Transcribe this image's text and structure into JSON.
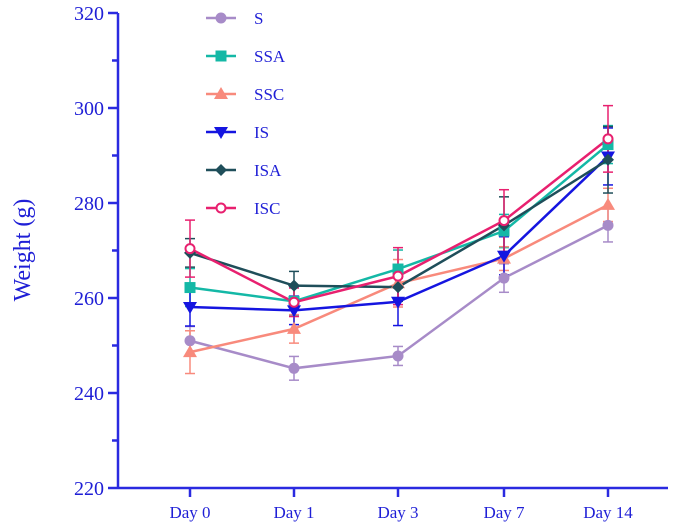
{
  "chart_data": {
    "type": "line",
    "title": "",
    "xlabel": "",
    "ylabel": "Weight (g)",
    "ylim": [
      220,
      320
    ],
    "yticks": [
      220,
      240,
      260,
      280,
      300,
      320
    ],
    "ytick_labels": [
      "220",
      "240",
      "260",
      "280",
      "300",
      "320"
    ],
    "categories": [
      "Day 0",
      "Day 1",
      "Day 3",
      "Day 7",
      "Day 14"
    ],
    "legend_position": "top-center",
    "series": [
      {
        "name": "S",
        "color": "#a78bc8",
        "marker": "circle",
        "values": [
          251,
          245.2,
          247.8,
          264.2,
          275.3
        ],
        "errors": [
          3,
          2.5,
          2,
          3,
          3.5
        ]
      },
      {
        "name": "SSA",
        "color": "#14b8a6",
        "marker": "square",
        "values": [
          262.2,
          259.3,
          266.1,
          274.1,
          292.3
        ],
        "errors": [
          4,
          3,
          4,
          3.5,
          4
        ]
      },
      {
        "name": "SSC",
        "color": "#f88a7c",
        "marker": "triangle-up",
        "values": [
          248.6,
          253.5,
          263.1,
          268.3,
          279.6
        ],
        "errors": [
          4.5,
          3,
          5,
          2.5,
          3.5
        ]
      },
      {
        "name": "IS",
        "color": "#1515e0",
        "marker": "triangle-down",
        "values": [
          258.1,
          257.4,
          259.2,
          268.9,
          289.8
        ],
        "errors": [
          4,
          3,
          5,
          4,
          6
        ]
      },
      {
        "name": "ISA",
        "color": "#1f4e5a",
        "marker": "diamond",
        "values": [
          269.5,
          262.6,
          262.3,
          275.3,
          289.1
        ],
        "errors": [
          3,
          3,
          3,
          6,
          7
        ]
      },
      {
        "name": "ISC",
        "color": "#e8206f",
        "marker": "circle-open",
        "values": [
          270.4,
          259.1,
          264.6,
          276.3,
          293.5
        ],
        "errors": [
          6,
          3,
          6,
          6.5,
          7
        ]
      }
    ]
  }
}
